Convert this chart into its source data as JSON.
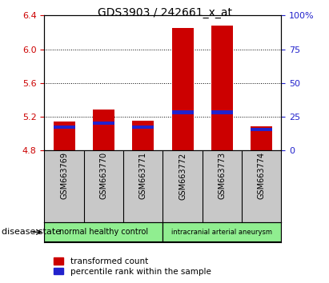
{
  "title": "GDS3903 / 242661_x_at",
  "samples": [
    "GSM663769",
    "GSM663770",
    "GSM663771",
    "GSM663772",
    "GSM663773",
    "GSM663774"
  ],
  "baseline": 4.8,
  "transformed_counts": [
    5.14,
    5.28,
    5.15,
    6.25,
    6.28,
    5.08
  ],
  "percentile_ranks": [
    17,
    20,
    17,
    28,
    28,
    15
  ],
  "ylim_left": [
    4.8,
    6.4
  ],
  "ylim_right": [
    0,
    100
  ],
  "yticks_left": [
    4.8,
    5.2,
    5.6,
    6.0,
    6.4
  ],
  "yticks_right": [
    0,
    25,
    50,
    75,
    100
  ],
  "group_label": "disease state",
  "bar_color_red": "#CC0000",
  "bar_color_blue": "#2222CC",
  "bar_width": 0.55,
  "plot_bg": "#FFFFFF",
  "tick_area_bg": "#C8C8C8",
  "grid_color": "black",
  "left_tick_color": "#CC0000",
  "right_tick_color": "#2222CC",
  "blue_bar_height": 0.04,
  "group_edges": [
    [
      -0.5,
      2.5,
      "normal healthy control"
    ],
    [
      2.5,
      5.5,
      "intracranial arterial aneurysm"
    ]
  ],
  "group_color": "#90EE90"
}
